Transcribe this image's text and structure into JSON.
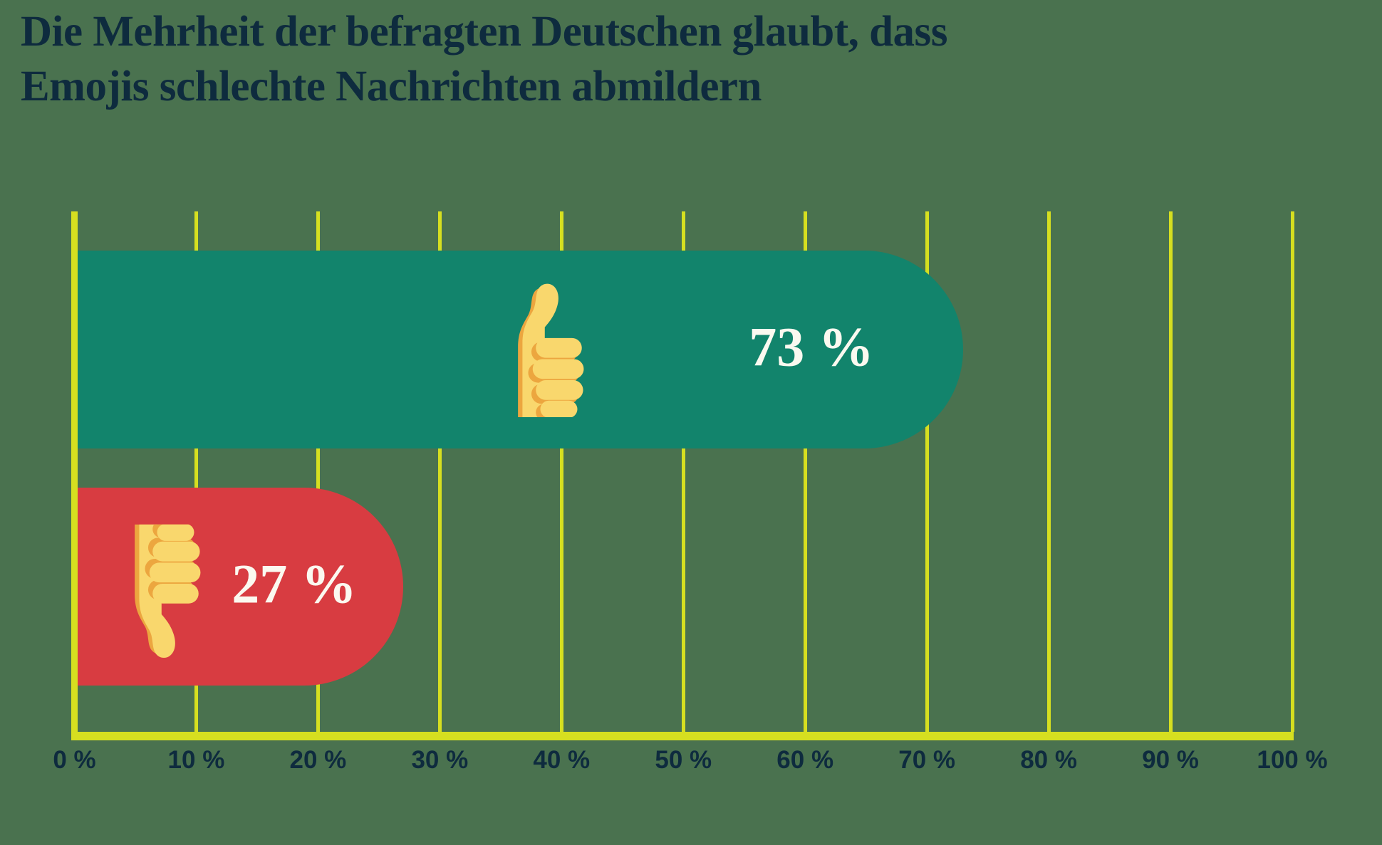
{
  "title": {
    "lines": [
      "Die Mehrheit der befragten Deutschen glaubt, dass",
      "Emojis schlechte Nachrichten abmildern"
    ]
  },
  "chart_data": {
    "type": "bar",
    "orientation": "horizontal",
    "title": "Die Mehrheit der befragten Deutschen glaubt, dass Emojis schlechte Nachrichten abmildern",
    "categories": [
      "thumbs-up",
      "thumbs-down"
    ],
    "values": [
      73,
      27
    ],
    "value_labels": [
      "73 %",
      "27 %"
    ],
    "bar_colors": [
      "#12846C",
      "#D83C41"
    ],
    "icons": [
      "thumbs-up-emoji",
      "thumbs-down-emoji"
    ],
    "xlim": [
      0,
      100
    ],
    "x_ticks": [
      0,
      10,
      20,
      30,
      40,
      50,
      60,
      70,
      80,
      90,
      100
    ],
    "x_tick_labels": [
      "0 %",
      "10 %",
      "20 %",
      "30 %",
      "40 %",
      "50 %",
      "60 %",
      "70 %",
      "80 %",
      "90 %",
      "100 %"
    ],
    "grid": "vertical gridlines on",
    "legend": "none"
  },
  "colors": {
    "background": "#4A724F",
    "gridline": "#D6DF20",
    "axis": "#D6DF20",
    "title_text": "#0E2B3E",
    "tick_text": "#0E2B3E",
    "value_text": "#FBF9F0",
    "bar_positive": "#12846C",
    "bar_negative": "#D83C41",
    "hand_fill": "#F9D76D",
    "hand_shadow": "#ECA63F"
  }
}
